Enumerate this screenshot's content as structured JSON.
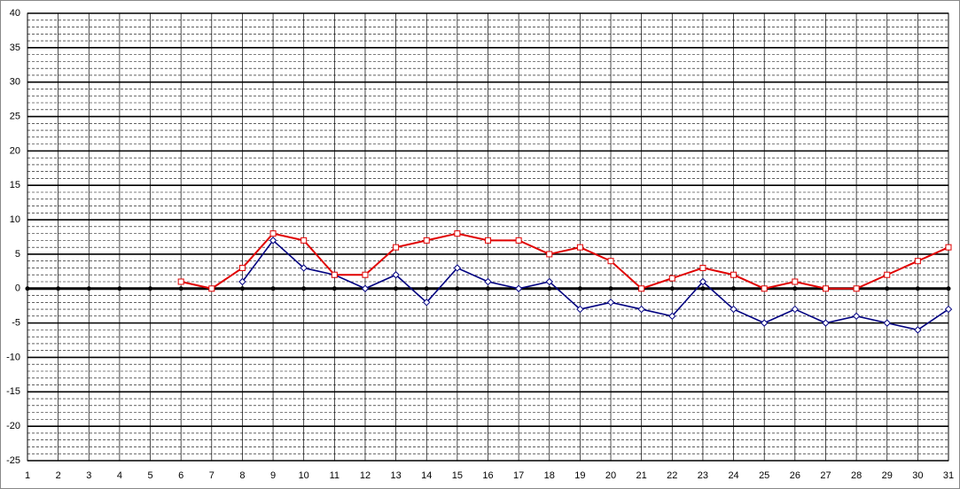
{
  "chart_data": {
    "type": "line",
    "x": [
      1,
      2,
      3,
      4,
      5,
      6,
      7,
      8,
      9,
      10,
      11,
      12,
      13,
      14,
      15,
      16,
      17,
      18,
      19,
      20,
      21,
      22,
      23,
      24,
      25,
      26,
      27,
      28,
      29,
      30,
      31
    ],
    "xlim": [
      1,
      31
    ],
    "xticks": [
      1,
      2,
      3,
      4,
      5,
      6,
      7,
      8,
      9,
      10,
      11,
      12,
      13,
      14,
      15,
      16,
      17,
      18,
      19,
      20,
      21,
      22,
      23,
      24,
      25,
      26,
      27,
      28,
      29,
      30,
      31
    ],
    "ylim": [
      -25,
      40
    ],
    "yticks": [
      -25,
      -20,
      -15,
      -10,
      -5,
      0,
      5,
      10,
      15,
      20,
      25,
      30,
      35,
      40
    ],
    "grid": true,
    "series": [
      {
        "color": "#000000",
        "marker": "dot",
        "values": [
          0,
          0,
          0,
          0,
          0,
          0,
          0,
          0,
          0,
          0,
          0,
          0,
          0,
          0,
          0,
          0,
          0,
          0,
          0,
          0,
          0,
          0,
          0,
          0,
          0,
          0,
          0,
          0,
          0,
          0,
          0
        ]
      },
      {
        "color": "#000080",
        "marker": "diamond",
        "values": [
          null,
          null,
          null,
          null,
          null,
          null,
          null,
          1,
          7,
          3,
          2,
          0,
          2,
          -2,
          3,
          1,
          0,
          1,
          -3,
          -2,
          -3,
          -4,
          1,
          -3,
          -5,
          -3,
          -5,
          -4,
          -5,
          -6,
          -3
        ]
      },
      {
        "color": "#e00000",
        "marker": "square",
        "values": [
          null,
          null,
          null,
          null,
          null,
          1,
          0,
          3,
          8,
          7,
          2,
          2,
          6,
          7,
          8,
          7,
          7,
          5,
          6,
          4,
          0,
          1.5,
          3,
          2,
          0,
          1,
          0,
          0,
          2,
          4,
          6
        ]
      }
    ]
  }
}
